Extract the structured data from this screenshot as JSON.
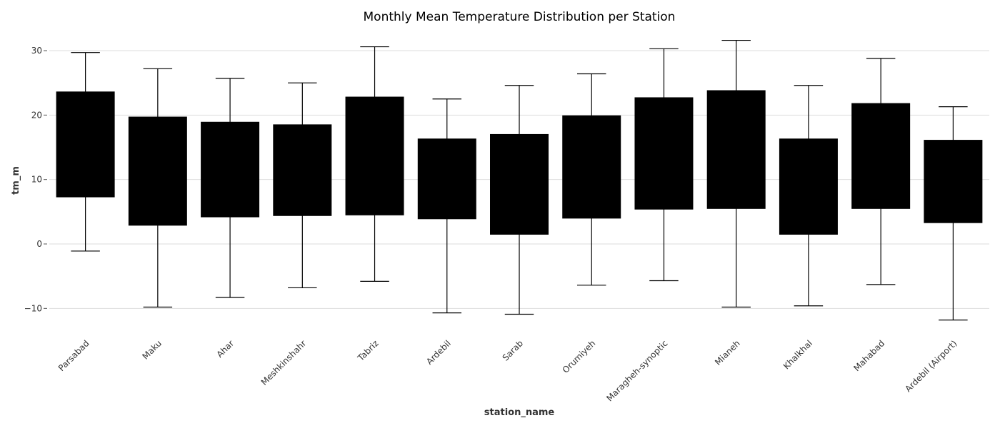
{
  "chart_data": {
    "type": "box",
    "title": "Monthly Mean Temperature Distribution per Station",
    "xlabel": "station_name",
    "ylabel": "tm_m",
    "ylim": [
      -14,
      33
    ],
    "yticks": [
      -10,
      0,
      10,
      20,
      30
    ],
    "ytick_labels": [
      "−10",
      "0",
      "10",
      "20",
      "30"
    ],
    "grid": true,
    "box_color": "#000000",
    "categories": [
      "Parsabad",
      "Maku",
      "Ahar",
      "Meshkinshahr",
      "Tabriz",
      "Ardebil",
      "Sarab",
      "Orumiyeh",
      "Maragheh-synoptic",
      "Mianeh",
      "Khalkhal",
      "Mahabad",
      "Ardebil (Airport)"
    ],
    "series": [
      {
        "whisker_low": [
          -1.1,
          -9.8,
          -8.3,
          -6.8,
          -5.8,
          -10.7,
          -10.9,
          -6.4,
          -5.7,
          -9.8,
          -9.6,
          -6.3,
          -11.8
        ],
        "q1": [
          7.3,
          2.9,
          4.2,
          4.4,
          4.5,
          3.9,
          1.5,
          4.0,
          5.4,
          5.5,
          1.5,
          5.5,
          3.3
        ],
        "q3": [
          23.6,
          19.7,
          18.9,
          18.5,
          22.8,
          16.3,
          17.0,
          19.9,
          22.7,
          23.8,
          16.3,
          21.8,
          16.1
        ],
        "whisker_high": [
          29.7,
          27.2,
          25.7,
          25.0,
          30.6,
          22.5,
          24.6,
          26.4,
          30.3,
          31.6,
          24.6,
          28.8,
          21.3
        ]
      }
    ]
  }
}
